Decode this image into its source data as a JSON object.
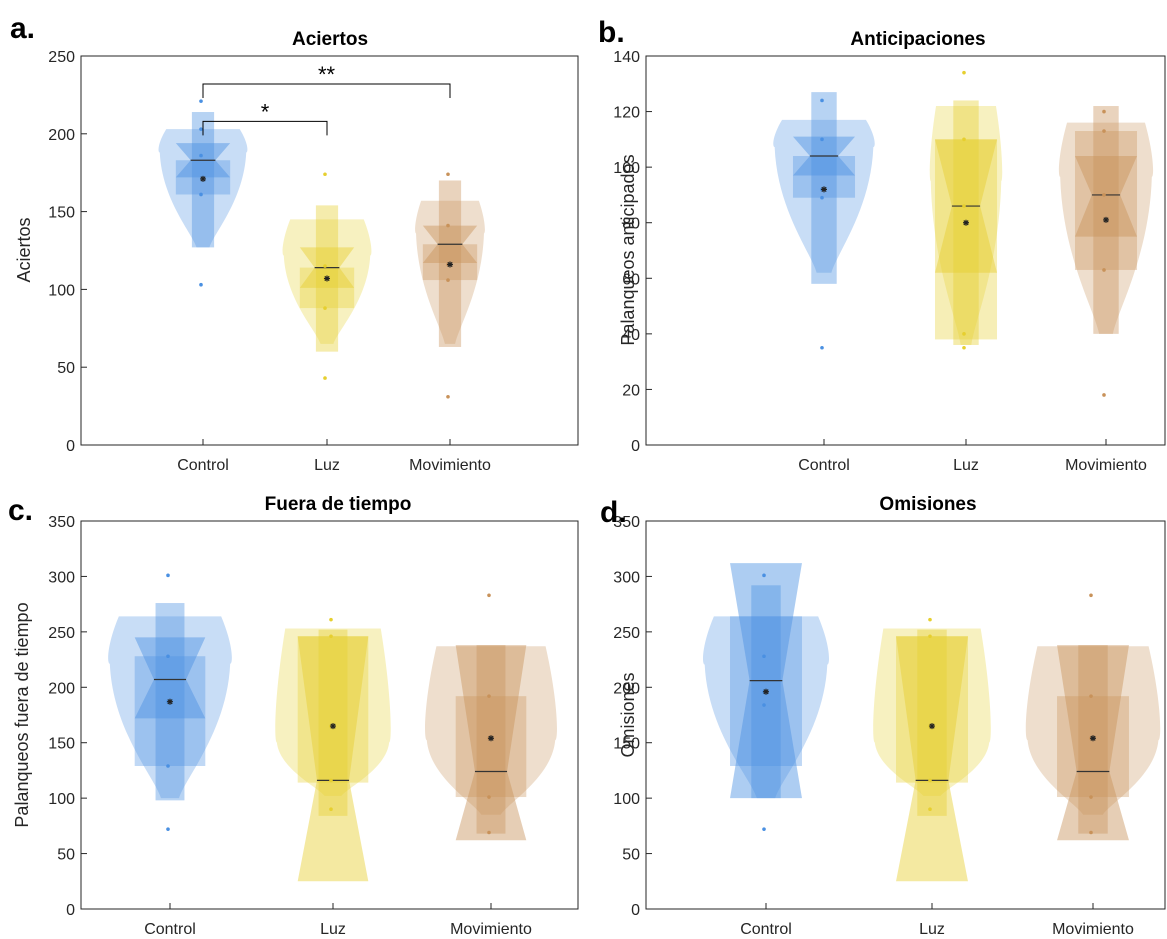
{
  "chart_data": [
    {
      "type": "violin",
      "panel_label": "a.",
      "title": "Aciertos",
      "ylabel": "Aciertos",
      "xlabel": "",
      "ylim": [
        0,
        250
      ],
      "yticks": [
        0,
        50,
        100,
        150,
        200,
        250
      ],
      "categories": [
        "Control",
        "Luz",
        "Movimiento"
      ],
      "groups": [
        {
          "name": "Control",
          "color": "#4A90E2",
          "median": 183,
          "mean": 171,
          "q1": 161,
          "q3": 183,
          "notch_lo": 172,
          "notch_hi": 194,
          "whisker_lo": 127,
          "whisker_hi": 214,
          "violin_min": 127,
          "violin_max": 203,
          "violin_width": 0.7,
          "points": [
            221,
            203,
            186,
            161,
            103
          ]
        },
        {
          "name": "Luz",
          "color": "#E6CF2F",
          "median": 114,
          "mean": 107,
          "q1": 88,
          "q3": 114,
          "notch_lo": 101,
          "notch_hi": 127,
          "whisker_lo": 60,
          "whisker_hi": 154,
          "violin_min": 65,
          "violin_max": 145,
          "violin_width": 0.7,
          "points": [
            174,
            115,
            107,
            88,
            43
          ]
        },
        {
          "name": "Movimiento",
          "color": "#C8925A",
          "median": 129,
          "mean": 116,
          "q1": 106,
          "q3": 129,
          "notch_lo": 117,
          "notch_hi": 141,
          "whisker_lo": 63,
          "whisker_hi": 170,
          "violin_min": 65,
          "violin_max": 157,
          "violin_width": 0.55,
          "points": [
            174,
            141,
            116,
            106,
            31
          ]
        }
      ],
      "significance": [
        {
          "from": 0,
          "to": 1,
          "y": 208,
          "label": "*"
        },
        {
          "from": 0,
          "to": 2,
          "y": 232,
          "label": "**"
        }
      ]
    },
    {
      "type": "violin",
      "panel_label": "b.",
      "title": "Anticipaciones",
      "ylabel": "Palanqueos anticipados",
      "xlabel": "",
      "ylim": [
        0,
        140
      ],
      "yticks": [
        0,
        20,
        40,
        60,
        80,
        100,
        120,
        140
      ],
      "categories": [
        "Control",
        "Luz",
        "Movimiento"
      ],
      "groups": [
        {
          "name": "Control",
          "color": "#4A90E2",
          "median": 104,
          "mean": 92,
          "q1": 89,
          "q3": 104,
          "notch_lo": 97,
          "notch_hi": 111,
          "whisker_lo": 58,
          "whisker_hi": 127,
          "violin_min": 62,
          "violin_max": 117,
          "violin_width": 0.7,
          "points": [
            124,
            110,
            92,
            89,
            35
          ]
        },
        {
          "name": "Luz",
          "color": "#E6CF2F",
          "median": 86,
          "mean": 80,
          "q1": 38,
          "q3": 110,
          "notch_lo": 62,
          "notch_hi": 110,
          "whisker_lo": 36,
          "whisker_hi": 124,
          "violin_min": 36,
          "violin_max": 122,
          "violin_width": 0.5,
          "points": [
            134,
            110,
            86,
            40,
            35
          ]
        },
        {
          "name": "Movimiento",
          "color": "#C8925A",
          "median": 90,
          "mean": 81,
          "q1": 63,
          "q3": 113,
          "notch_lo": 75,
          "notch_hi": 104,
          "whisker_lo": 40,
          "whisker_hi": 122,
          "violin_min": 40,
          "violin_max": 116,
          "violin_width": 0.65,
          "points": [
            120,
            113,
            90,
            63,
            18
          ]
        }
      ],
      "significance": []
    },
    {
      "type": "violin",
      "panel_label": "c.",
      "title": "Fuera de tiempo",
      "ylabel": "Palanqueos fuera de tiempo",
      "xlabel": "",
      "ylim": [
        0,
        350
      ],
      "yticks": [
        0,
        50,
        100,
        150,
        200,
        250,
        300,
        350
      ],
      "categories": [
        "Control",
        "Luz",
        "Movimiento"
      ],
      "groups": [
        {
          "name": "Control",
          "color": "#4A90E2",
          "median": 207,
          "mean": 187,
          "q1": 129,
          "q3": 228,
          "notch_lo": 172,
          "notch_hi": 245,
          "whisker_lo": 98,
          "whisker_hi": 276,
          "violin_min": 100,
          "violin_max": 264,
          "violin_width": 0.75,
          "points": [
            301,
            228,
            187,
            129,
            72
          ]
        },
        {
          "name": "Luz",
          "color": "#E6CF2F",
          "median": 116,
          "mean": 165,
          "q1": 114,
          "q3": 246,
          "notch_lo": 25,
          "notch_hi": 246,
          "whisker_lo": 84,
          "whisker_hi": 252,
          "violin_min": 102,
          "violin_max": 253,
          "violin_width": 0.7,
          "points": [
            261,
            246,
            165,
            116,
            90
          ]
        },
        {
          "name": "Movimiento",
          "color": "#C8925A",
          "median": 124,
          "mean": 154,
          "q1": 101,
          "q3": 192,
          "notch_lo": 62,
          "notch_hi": 238,
          "whisker_lo": 68,
          "whisker_hi": 238,
          "violin_min": 85,
          "violin_max": 237,
          "violin_width": 0.8,
          "points": [
            283,
            192,
            154,
            101,
            69
          ]
        }
      ],
      "significance": []
    },
    {
      "type": "violin",
      "panel_label": "d.",
      "title": "Omisiones",
      "ylabel": "Omisiones",
      "xlabel": "",
      "ylim": [
        0,
        350
      ],
      "yticks": [
        0,
        50,
        100,
        150,
        200,
        250,
        300,
        350
      ],
      "categories": [
        "Control",
        "Luz",
        "Movimiento"
      ],
      "groups": [
        {
          "name": "Control",
          "color": "#4A90E2",
          "median": 206,
          "mean": 196,
          "q1": 129,
          "q3": 264,
          "notch_lo": 100,
          "notch_hi": 312,
          "whisker_lo": 100,
          "whisker_hi": 292,
          "violin_min": 100,
          "violin_max": 264,
          "violin_width": 0.75,
          "points": [
            301,
            228,
            196,
            184,
            72
          ]
        },
        {
          "name": "Luz",
          "color": "#E6CF2F",
          "median": 116,
          "mean": 165,
          "q1": 114,
          "q3": 246,
          "notch_lo": 25,
          "notch_hi": 246,
          "whisker_lo": 84,
          "whisker_hi": 252,
          "violin_min": 102,
          "violin_max": 253,
          "violin_width": 0.7,
          "points": [
            261,
            246,
            165,
            116,
            90
          ]
        },
        {
          "name": "Movimiento",
          "color": "#C8925A",
          "median": 124,
          "mean": 154,
          "q1": 101,
          "q3": 192,
          "notch_lo": 62,
          "notch_hi": 238,
          "whisker_lo": 68,
          "whisker_hi": 238,
          "violin_min": 85,
          "violin_max": 237,
          "violin_width": 0.8,
          "points": [
            283,
            192,
            154,
            101,
            69
          ]
        }
      ],
      "significance": []
    }
  ]
}
